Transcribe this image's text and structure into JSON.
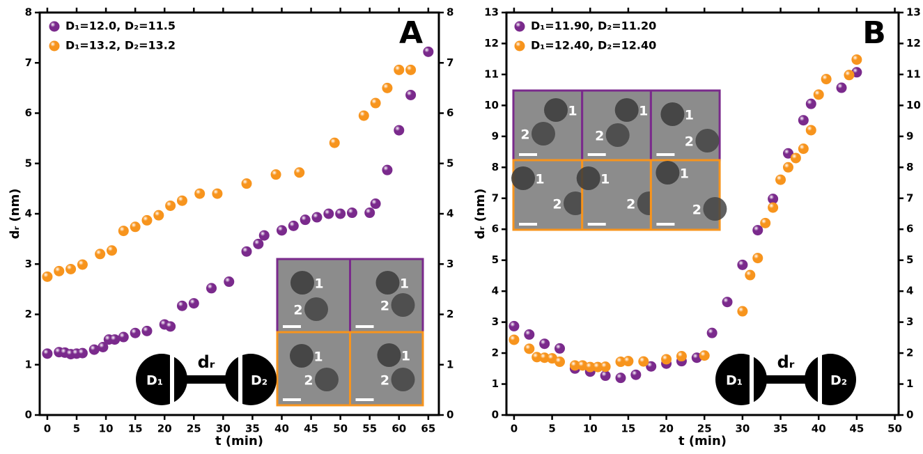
{
  "chart_data": [
    {
      "type": "scatter",
      "panel_label": "A",
      "xlabel": "t (min)",
      "ylabel": "dᵣ (nm)",
      "xlim": [
        -1.3,
        66.8
      ],
      "ylim": [
        0,
        8
      ],
      "xticks": [
        0,
        5,
        10,
        15,
        20,
        25,
        30,
        35,
        40,
        45,
        50,
        55,
        60,
        65
      ],
      "yticks": [
        0,
        1,
        2,
        3,
        4,
        5,
        6,
        7,
        8
      ],
      "series": [
        {
          "name": "D₁=12.0, D₂=11.5",
          "color": "#7a2a8c",
          "x": [
            0,
            2,
            3,
            4,
            5,
            6,
            8,
            9.5,
            10.5,
            11.5,
            13,
            15,
            17,
            20,
            21,
            23,
            25,
            28,
            31,
            34,
            36,
            37,
            40,
            42,
            44,
            46,
            48,
            50,
            52,
            55,
            56,
            58,
            60,
            62,
            65
          ],
          "values": [
            1.22,
            1.25,
            1.24,
            1.21,
            1.22,
            1.23,
            1.3,
            1.35,
            1.5,
            1.5,
            1.55,
            1.63,
            1.67,
            1.8,
            1.76,
            2.17,
            2.22,
            2.52,
            2.65,
            3.25,
            3.4,
            3.57,
            3.67,
            3.76,
            3.88,
            3.93,
            4.0,
            4.0,
            4.02,
            4.02,
            4.2,
            4.87,
            5.66,
            6.36,
            7.22
          ]
        },
        {
          "name": "D₁=13.2, D₂=13.2",
          "color": "#f7941d",
          "x": [
            0,
            2,
            4,
            6,
            9,
            11,
            13,
            15,
            17,
            19,
            21,
            23,
            26,
            29,
            34,
            39,
            43,
            49,
            54,
            56,
            58,
            60,
            62
          ],
          "values": [
            2.75,
            2.86,
            2.9,
            2.99,
            3.2,
            3.27,
            3.66,
            3.74,
            3.87,
            3.97,
            4.16,
            4.26,
            4.4,
            4.4,
            4.6,
            4.78,
            4.82,
            5.41,
            5.95,
            6.2,
            6.5,
            6.86,
            6.86
          ]
        }
      ],
      "inset_labels": [
        "1",
        "2"
      ],
      "schematic": {
        "left": "D₁",
        "right": "D₂",
        "link": "dᵣ"
      }
    },
    {
      "type": "scatter",
      "panel_label": "B",
      "xlabel": "t (min)",
      "ylabel": "dᵣ (nm)",
      "xlim": [
        -1,
        50.5
      ],
      "ylim": [
        0,
        13
      ],
      "xticks": [
        0,
        5,
        10,
        15,
        20,
        25,
        30,
        35,
        40,
        45,
        50
      ],
      "yticks": [
        0,
        1,
        2,
        3,
        4,
        5,
        6,
        7,
        8,
        9,
        10,
        11,
        12,
        13
      ],
      "series": [
        {
          "name": "D₁=11.90, D₂=11.20",
          "color": "#7a2a8c",
          "x": [
            0,
            2,
            4,
            6,
            8,
            10,
            12,
            14,
            16,
            18,
            20,
            22,
            24,
            26,
            28,
            30,
            32,
            34,
            36,
            38,
            39,
            43,
            45
          ],
          "values": [
            2.87,
            2.6,
            2.3,
            2.15,
            1.5,
            1.4,
            1.27,
            1.2,
            1.3,
            1.57,
            1.66,
            1.74,
            1.85,
            2.65,
            3.65,
            4.85,
            5.97,
            6.98,
            8.45,
            9.52,
            10.05,
            10.57,
            11.07
          ]
        },
        {
          "name": "D₁=12.40, D₂=12.40",
          "color": "#f7941d",
          "x": [
            0,
            2,
            3,
            4,
            5,
            6,
            8,
            9,
            10,
            11,
            12,
            14,
            15,
            17,
            20,
            22,
            25,
            30,
            31,
            32,
            33,
            34,
            35,
            36,
            37,
            38,
            39,
            40,
            41,
            44,
            45
          ],
          "values": [
            2.43,
            2.14,
            1.87,
            1.85,
            1.83,
            1.72,
            1.6,
            1.6,
            1.55,
            1.55,
            1.56,
            1.72,
            1.74,
            1.73,
            1.8,
            1.9,
            1.92,
            3.35,
            4.52,
            5.07,
            6.2,
            6.7,
            7.6,
            8.0,
            8.3,
            8.6,
            9.2,
            10.35,
            10.85,
            10.98,
            11.48
          ]
        }
      ],
      "inset_labels": [
        "1",
        "2"
      ],
      "schematic": {
        "left": "D₁",
        "right": "D₂",
        "link": "dᵣ"
      }
    }
  ]
}
